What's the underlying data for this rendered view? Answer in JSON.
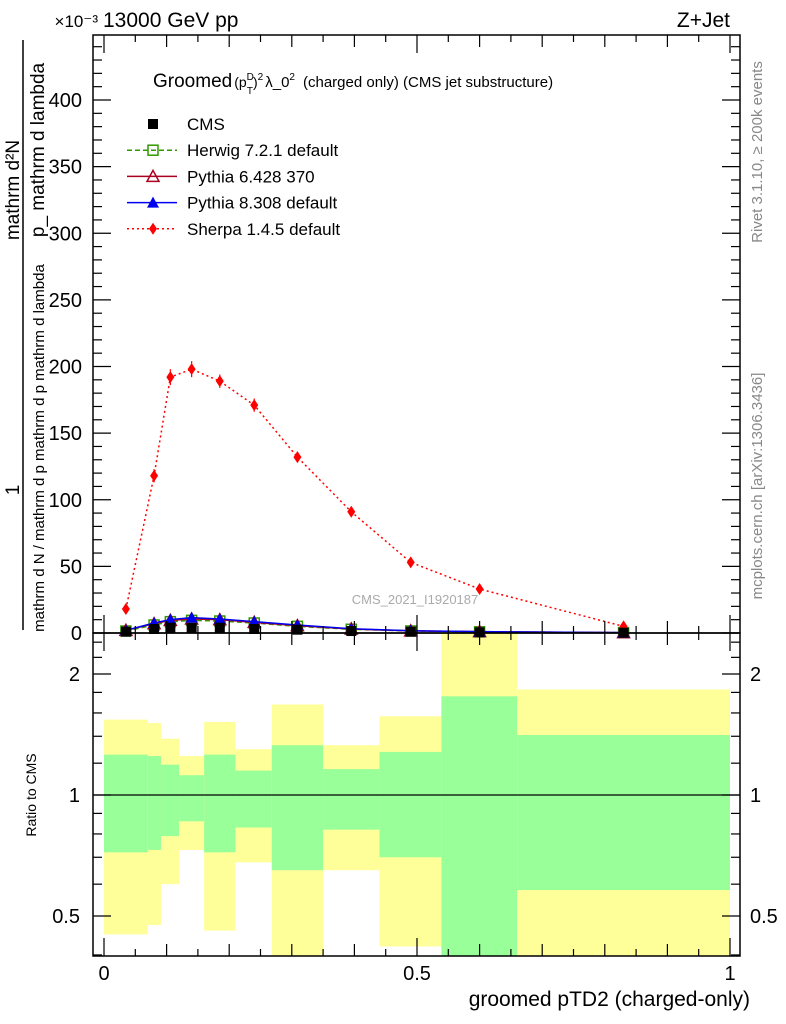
{
  "header": {
    "left": "13000 GeV pp",
    "right": "Z+Jet",
    "exponent": "×10⁻³"
  },
  "side_text": {
    "top": "Rivet 3.1.10, ≥ 200k events",
    "bottom": "mcplots.cern.ch [arXiv:1306.3436]"
  },
  "watermark": "CMS_2021_I1920187",
  "ylabel": {
    "a_top": "mathrm d²N",
    "a_bottom": "1",
    "b_top": "p_ mathrm d lambda",
    "b_bottom": "mathrm d N / mathrm d p mathrm d p mathrm d lambda"
  },
  "colors": {
    "cms": "#000000",
    "herwig": "#339900",
    "pythia6": "#aa0022",
    "pythia8": "#0000ee",
    "sherpa": "#ff0000",
    "band_inner": "#99ff99",
    "band_outer": "#ffff99"
  },
  "chart_data": [
    {
      "type": "line",
      "title": "Groomed (p_T^D)^2 λ_0^2  (charged only) (CMS jet substructure)",
      "title_parts": {
        "pre": "Groomed",
        "math": "(p",
        "sup1": "D",
        "sub": "T",
        "close": ")",
        "sup2": "2",
        "lam": "λ_0",
        "sup3": "2",
        "post": "(charged only) (CMS jet substructure)"
      },
      "xlabel": "groomed pTD2 (charged-only)",
      "ylabel": "1/N dN/dλ",
      "xlim": [
        0,
        1
      ],
      "ylim": [
        0,
        450
      ],
      "yscale_label": "×10⁻³",
      "yticks": [
        0,
        50,
        100,
        150,
        200,
        250,
        300,
        350,
        400
      ],
      "xticks": [
        "0",
        "0.5",
        "1"
      ],
      "legend_position": "top-left",
      "x": [
        0.035,
        0.08,
        0.106,
        0.14,
        0.185,
        0.24,
        0.309,
        0.395,
        0.49,
        0.6,
        0.83
      ],
      "series": [
        {
          "name": "CMS",
          "key": "cms",
          "values": [
            1,
            3,
            4,
            4,
            4,
            3,
            2.5,
            1.5,
            1,
            0.5,
            0.2
          ]
        },
        {
          "name": "Herwig 7.2.1 default",
          "key": "herwig",
          "values": [
            1.5,
            6,
            8.5,
            9.5,
            9,
            7.5,
            5,
            2.8,
            1.5,
            0.9,
            0.3
          ]
        },
        {
          "name": "Pythia 6.428 370",
          "key": "pythia6",
          "values": [
            2,
            7,
            9.5,
            10.5,
            10,
            8,
            5.5,
            3,
            1.6,
            1,
            0.3
          ]
        },
        {
          "name": "Pythia 8.308 default",
          "key": "pythia8",
          "values": [
            2,
            7.5,
            10,
            11.5,
            10.5,
            8.5,
            6,
            3.2,
            1.7,
            1,
            0.3
          ]
        },
        {
          "name": "Sherpa 1.4.5 default",
          "key": "sherpa",
          "values": [
            18,
            118,
            192,
            198,
            189,
            171,
            132,
            91,
            53,
            33,
            5
          ],
          "errors": [
            2,
            5,
            6,
            6,
            5,
            5,
            4,
            3,
            2,
            2,
            1
          ]
        }
      ]
    },
    {
      "type": "area",
      "ylabel": "Ratio to CMS",
      "yscale": "log",
      "ylim": [
        0.4,
        2.5
      ],
      "yticks": [
        "0.5",
        "1",
        "2"
      ],
      "bin_edges": [
        0,
        0.07,
        0.091,
        0.12,
        0.16,
        0.21,
        0.268,
        0.35,
        0.44,
        0.539,
        0.66,
        1.0
      ],
      "inner_band": {
        "upper": [
          1.26,
          1.25,
          1.19,
          1.12,
          1.26,
          1.15,
          1.33,
          1.16,
          1.28,
          1.76,
          1.41
        ],
        "lower": [
          0.72,
          0.73,
          0.79,
          0.86,
          0.72,
          0.83,
          0.65,
          0.82,
          0.7,
          0.38,
          0.58
        ]
      },
      "outer_band": {
        "upper": [
          1.54,
          1.51,
          1.38,
          1.25,
          1.52,
          1.3,
          1.68,
          1.33,
          1.57,
          2.6,
          1.83
        ],
        "lower": [
          0.45,
          0.475,
          0.6,
          0.73,
          0.46,
          0.68,
          0.38,
          0.65,
          0.42,
          0.38,
          0.38
        ]
      }
    }
  ]
}
